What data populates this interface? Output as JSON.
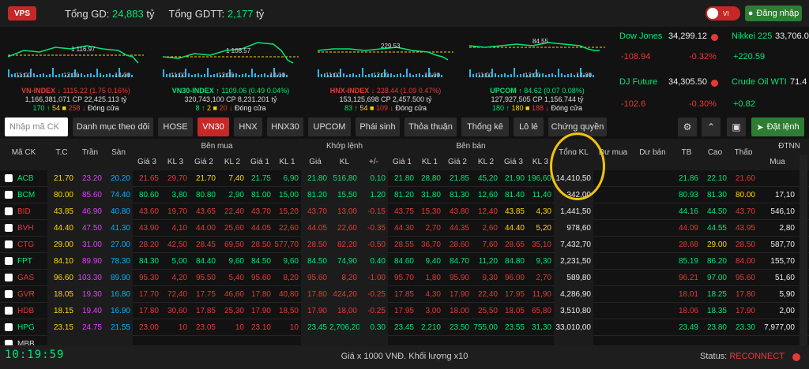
{
  "header": {
    "logo": "VPS",
    "tong_gd_label": "Tổng GD:",
    "tong_gd_value": "24,883",
    "tong_gd_unit": "tỷ",
    "tong_gdtt_label": "Tổng GDTT:",
    "tong_gdtt_value": "2,177",
    "tong_gdtt_unit": "tỷ",
    "lang": "VI",
    "login": "Đăng nhập"
  },
  "indices": [
    {
      "ref": "1 116.97",
      "t1": "11:00",
      "t2": "12:00",
      "t3": "14:00",
      "name": "VN-INDEX",
      "value": "1115.22",
      "change": "(1.75  0.16%)",
      "dir": "↓",
      "vol": "1,166,381,071",
      "cp_label": "CP",
      "val": "22,425.113",
      "unit": "tỷ",
      "up": "170",
      "ref_n": "54",
      "down": "258",
      "status": "Đóng cửa"
    },
    {
      "ref": "1 108.57",
      "t1": "11:00",
      "t2": "12:00",
      "t3": "14:00",
      "name": "VN30-INDEX",
      "value": "1109.06",
      "change": "(0.49  0.04%)",
      "dir": "↑",
      "vol": "320,743,100",
      "cp_label": "CP",
      "val": "8,231.201",
      "unit": "tỷ",
      "up": "8",
      "ref_n": "2",
      "down": "20",
      "status": "Đóng cửa"
    },
    {
      "ref": "229.53",
      "t1": "11:00",
      "t2": "12:00",
      "t3": "14:00",
      "name": "HNX-INDEX",
      "value": "228.44",
      "change": "(1.09  0.47%)",
      "dir": "↓",
      "vol": "153,125,698",
      "cp_label": "CP",
      "val": "2,457.500",
      "unit": "tỷ",
      "up": "83",
      "ref_n": "54",
      "down": "109",
      "status": "Đóng cửa"
    },
    {
      "ref": "84.55",
      "t1": "11:00",
      "t2": "12:00",
      "t3": "14:00",
      "name": "UPCOM",
      "value": "84.62",
      "change": "(0.07  0.08%)",
      "dir": "↑",
      "vol": "127,927,505",
      "cp_label": "CP",
      "val": "1,156.744",
      "unit": "tỷ",
      "up": "180",
      "ref_n": "180",
      "down": "188",
      "status": "Đóng cửa"
    }
  ],
  "world": [
    {
      "name": "Dow Jones",
      "value": "34,299.12",
      "change": "-108.94",
      "pct": "-0.32%"
    },
    {
      "name": "Nikkei 225",
      "value": "33,706.0",
      "change": "+220.59",
      "pct": ""
    },
    {
      "name": "DJ Future",
      "value": "34,305.50",
      "change": "-102.6",
      "pct": "-0.30%"
    },
    {
      "name": "Crude Oil WTI",
      "value": "71.4",
      "change": "+0.82",
      "pct": ""
    }
  ],
  "toolbar": {
    "search_placeholder": "Nhập mã CK",
    "tabs": [
      "Danh mục theo dõi",
      "HOSE",
      "VN30",
      "HNX",
      "HNX30",
      "UPCOM",
      "Phái sinh",
      "Thỏa thuận",
      "Thống kê",
      "Lô lẻ",
      "Chứng quyền"
    ],
    "active_tab": "VN30",
    "settings_icon": "gear-icon",
    "collapse_icon": "chevron-up-icon",
    "screen_icon": "monitor-icon",
    "order": "Đặt lệnh"
  },
  "table": {
    "groups": {
      "ben_mua": "Bên mua",
      "khop_lenh": "Khớp lệnh",
      "ben_ban": "Bên bán",
      "dtnn": "ĐTNN"
    },
    "headers": {
      "ma": "Mã CK",
      "tc": "T.C",
      "tran": "Trần",
      "san": "Sàn",
      "g3": "Giá 3",
      "kl3": "KL 3",
      "g2": "Giá 2",
      "kl2": "KL 2",
      "g1": "Giá 1",
      "kl1": "KL 1",
      "gia": "Giá",
      "kl": "KL",
      "pm": "+/-",
      "sg1": "Giá 1",
      "skl1": "KL 1",
      "sg2": "Giá 2",
      "skl2": "KL 2",
      "sg3": "Giá 3",
      "skl3": "KL 3",
      "tongkl": "Tổng KL",
      "dumua": "Dư mua",
      "duban": "Dư bán",
      "tb": "TB",
      "cao": "Cao",
      "thap": "Thấp",
      "mua": "Mua"
    },
    "rows": [
      {
        "sym": "ACB",
        "tc": "21.70",
        "tran": "23.20",
        "san": "20.20",
        "bg3": "21.65",
        "bk3": "29,70",
        "bg2": "21.70",
        "bk2": "7,40",
        "bg1": "21.75",
        "bk1": "6,90",
        "gia": "21.80",
        "kl": "516,80",
        "pm": "0.10",
        "sg1": "21.80",
        "sk1": "28,80",
        "sg2": "21.85",
        "sk2": "45,20",
        "sg3": "21.90",
        "sk3": "196,60",
        "tong": "14,410,50",
        "tb": "21.86",
        "cao": "22.10",
        "thap": "21.60",
        "mua": ""
      },
      {
        "sym": "BCM",
        "tc": "80.00",
        "tran": "85.60",
        "san": "74.40",
        "bg3": "80.60",
        "bk3": "3,80",
        "bg2": "80.80",
        "bk2": "2,90",
        "bg1": "81.00",
        "bk1": "15,00",
        "gia": "81.20",
        "kl": "15,50",
        "pm": "1.20",
        "sg1": "81.20",
        "sk1": "31,80",
        "sg2": "81.30",
        "sk2": "12,60",
        "sg3": "81.40",
        "sk3": "11,40",
        "tong": "342,00",
        "tb": "80.93",
        "cao": "81.30",
        "thap": "80.00",
        "mua": "17,10"
      },
      {
        "sym": "BID",
        "tc": "43.85",
        "tran": "46.90",
        "san": "40.80",
        "bg3": "43.60",
        "bk3": "19,70",
        "bg2": "43.65",
        "bk2": "22,40",
        "bg1": "43.70",
        "bk1": "15,20",
        "gia": "43.70",
        "kl": "13,00",
        "pm": "-0.15",
        "sg1": "43.75",
        "sk1": "15,30",
        "sg2": "43.80",
        "sk2": "12,40",
        "sg3": "43.85",
        "sk3": "4,30",
        "tong": "1,441,50",
        "tb": "44.16",
        "cao": "44.50",
        "thap": "43.70",
        "mua": "546,10"
      },
      {
        "sym": "BVH",
        "tc": "44.40",
        "tran": "47.50",
        "san": "41.30",
        "bg3": "43.90",
        "bk3": "4,10",
        "bg2": "44.00",
        "bk2": "25,60",
        "bg1": "44.05",
        "bk1": "22,60",
        "gia": "44.05",
        "kl": "22,60",
        "pm": "-0.35",
        "sg1": "44.30",
        "sk1": "2,70",
        "sg2": "44.35",
        "sk2": "2,60",
        "sg3": "44.40",
        "sk3": "5,20",
        "tong": "978,60",
        "tb": "44.09",
        "cao": "44.55",
        "thap": "43.95",
        "mua": "2,80"
      },
      {
        "sym": "CTG",
        "tc": "29.00",
        "tran": "31.00",
        "san": "27.00",
        "bg3": "28.20",
        "bk3": "42,50",
        "bg2": "28.45",
        "bk2": "69,50",
        "bg1": "28.50",
        "bk1": "577,70",
        "gia": "28.50",
        "kl": "82,20",
        "pm": "-0.50",
        "sg1": "28.55",
        "sk1": "36,70",
        "sg2": "28.60",
        "sk2": "7,60",
        "sg3": "28.65",
        "sk3": "35,10",
        "tong": "7,432,70",
        "tb": "28.68",
        "cao": "29.00",
        "thap": "28.50",
        "mua": "587,70"
      },
      {
        "sym": "FPT",
        "tc": "84.10",
        "tran": "89.90",
        "san": "78.30",
        "bg3": "84.30",
        "bk3": "5,00",
        "bg2": "84.40",
        "bk2": "9,60",
        "bg1": "84.50",
        "bk1": "9,60",
        "gia": "84.50",
        "kl": "74,90",
        "pm": "0.40",
        "sg1": "84.60",
        "sk1": "9,40",
        "sg2": "84.70",
        "sk2": "11,20",
        "sg3": "84.80",
        "sk3": "9,30",
        "tong": "2,231,50",
        "tb": "85.19",
        "cao": "86.20",
        "thap": "84.00",
        "mua": "155,70"
      },
      {
        "sym": "GAS",
        "tc": "96.60",
        "tran": "103.30",
        "san": "89.90",
        "bg3": "95.30",
        "bk3": "4,20",
        "bg2": "95.50",
        "bk2": "5,40",
        "bg1": "95.60",
        "bk1": "8,20",
        "gia": "95.60",
        "kl": "8,20",
        "pm": "-1.00",
        "sg1": "95.70",
        "sk1": "1,80",
        "sg2": "95.90",
        "sk2": "9,30",
        "sg3": "96.00",
        "sk3": "2,70",
        "tong": "589,80",
        "tb": "96.21",
        "cao": "97.00",
        "thap": "95.60",
        "mua": "51,60"
      },
      {
        "sym": "GVR",
        "tc": "18.05",
        "tran": "19.30",
        "san": "16.80",
        "bg3": "17.70",
        "bk3": "72,40",
        "bg2": "17.75",
        "bk2": "46,60",
        "bg1": "17.80",
        "bk1": "40,80",
        "gia": "17.80",
        "kl": "424,20",
        "pm": "-0.25",
        "sg1": "17.85",
        "sk1": "4,30",
        "sg2": "17.90",
        "sk2": "22,40",
        "sg3": "17.95",
        "sk3": "11,90",
        "tong": "4,286,90",
        "tb": "18.01",
        "cao": "18.25",
        "thap": "17.80",
        "mua": "5,90"
      },
      {
        "sym": "HDB",
        "tc": "18.15",
        "tran": "19.40",
        "san": "16.90",
        "bg3": "17.80",
        "bk3": "30,60",
        "bg2": "17.85",
        "bk2": "25,30",
        "bg1": "17.90",
        "bk1": "18,50",
        "gia": "17.90",
        "kl": "18,00",
        "pm": "-0.25",
        "sg1": "17.95",
        "sk1": "3,00",
        "sg2": "18.00",
        "sk2": "25,50",
        "sg3": "18.05",
        "sk3": "65,80",
        "tong": "3,510,80",
        "tb": "18.06",
        "cao": "18.35",
        "thap": "17.90",
        "mua": "2,00"
      },
      {
        "sym": "HPG",
        "tc": "23.15",
        "tran": "24.75",
        "san": "21.55",
        "bg3": "23.00",
        "bk3": "10",
        "bg2": "23.05",
        "bk2": "10",
        "bg1": "23.10",
        "bk1": "10",
        "gia": "23.45",
        "kl": "2,706,20",
        "pm": "0.30",
        "sg1": "23.45",
        "sk1": "2,210",
        "sg2": "23.50",
        "sk2": "755,00",
        "sg3": "23.55",
        "sk3": "31,30",
        "tong": "33,010,00",
        "tb": "23.49",
        "cao": "23.80",
        "thap": "23.30",
        "mua": "7,977,00"
      },
      {
        "sym": "MBB",
        "tc": "",
        "tran": "",
        "san": "",
        "bg3": "",
        "bk3": "",
        "bg2": "",
        "bk2": "",
        "bg1": "",
        "bk1": "",
        "gia": "",
        "kl": "",
        "pm": "",
        "sg1": "",
        "sk1": "",
        "sg2": "",
        "sk2": "",
        "sg3": "",
        "sk3": "",
        "tong": "",
        "tb": "",
        "cao": "",
        "thap": "",
        "mua": ""
      }
    ]
  },
  "footer": {
    "clock": "10:19:59",
    "note": "Giá x 1000 VNĐ. Khối lượng x10",
    "status_label": "Status:",
    "status_value": "RECONNECT"
  },
  "colors": {
    "up": "#00e676",
    "down": "#e53935",
    "ref": "#ffd600",
    "ceil": "#e040fb",
    "floor": "#00b0ff",
    "accent": "#c62828",
    "highlight": "#f4c20d"
  }
}
